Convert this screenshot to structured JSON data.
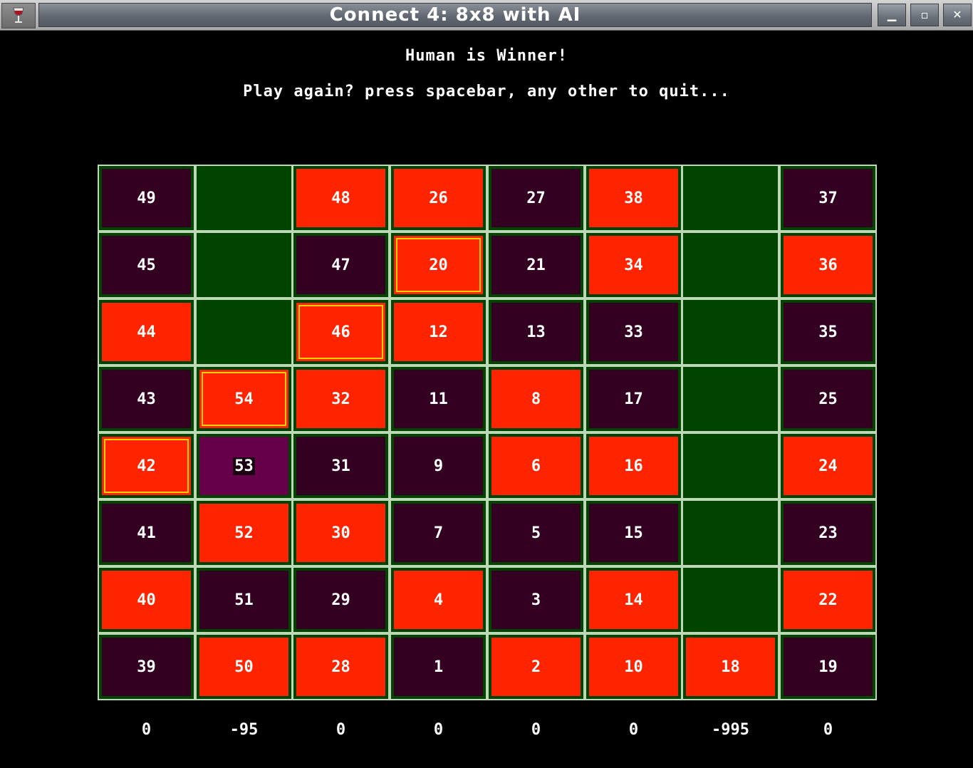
{
  "window": {
    "title": "Connect 4: 8x8 with AI",
    "app_icon": "wine-glass-icon",
    "buttons": {
      "minimize": "minimize-icon",
      "maximize": "maximize-icon",
      "close": "close-icon"
    }
  },
  "status_message": "Human is Winner!",
  "prompt_message": "Play again? press spacebar, any other to quit...",
  "colors": {
    "background": "#000000",
    "empty_cell": "#004400",
    "human_piece": "#ff2400",
    "ai_piece": "#330022",
    "last_move": "#66004a",
    "win_highlight": "#ffd000",
    "grid_line": "#bcd8b6"
  },
  "board": {
    "rows": [
      [
        {
          "num": "49",
          "player": "ai"
        },
        {
          "num": "",
          "player": "empty"
        },
        {
          "num": "48",
          "player": "human"
        },
        {
          "num": "26",
          "player": "human"
        },
        {
          "num": "27",
          "player": "ai"
        },
        {
          "num": "38",
          "player": "human"
        },
        {
          "num": "",
          "player": "empty"
        },
        {
          "num": "37",
          "player": "ai"
        }
      ],
      [
        {
          "num": "45",
          "player": "ai"
        },
        {
          "num": "",
          "player": "empty"
        },
        {
          "num": "47",
          "player": "ai"
        },
        {
          "num": "20",
          "player": "human",
          "win": true
        },
        {
          "num": "21",
          "player": "ai"
        },
        {
          "num": "34",
          "player": "human"
        },
        {
          "num": "",
          "player": "empty"
        },
        {
          "num": "36",
          "player": "human"
        }
      ],
      [
        {
          "num": "44",
          "player": "human"
        },
        {
          "num": "",
          "player": "empty"
        },
        {
          "num": "46",
          "player": "human",
          "win": true
        },
        {
          "num": "12",
          "player": "human"
        },
        {
          "num": "13",
          "player": "ai"
        },
        {
          "num": "33",
          "player": "ai"
        },
        {
          "num": "",
          "player": "empty"
        },
        {
          "num": "35",
          "player": "ai"
        }
      ],
      [
        {
          "num": "43",
          "player": "ai"
        },
        {
          "num": "54",
          "player": "human",
          "win": true
        },
        {
          "num": "32",
          "player": "human"
        },
        {
          "num": "11",
          "player": "ai"
        },
        {
          "num": "8",
          "player": "human"
        },
        {
          "num": "17",
          "player": "ai"
        },
        {
          "num": "",
          "player": "empty"
        },
        {
          "num": "25",
          "player": "ai"
        }
      ],
      [
        {
          "num": "42",
          "player": "human",
          "win": true
        },
        {
          "num": "53",
          "player": "last"
        },
        {
          "num": "31",
          "player": "ai"
        },
        {
          "num": "9",
          "player": "ai"
        },
        {
          "num": "6",
          "player": "human"
        },
        {
          "num": "16",
          "player": "human"
        },
        {
          "num": "",
          "player": "empty"
        },
        {
          "num": "24",
          "player": "human"
        }
      ],
      [
        {
          "num": "41",
          "player": "ai"
        },
        {
          "num": "52",
          "player": "human"
        },
        {
          "num": "30",
          "player": "human"
        },
        {
          "num": "7",
          "player": "ai"
        },
        {
          "num": "5",
          "player": "ai"
        },
        {
          "num": "15",
          "player": "ai"
        },
        {
          "num": "",
          "player": "empty"
        },
        {
          "num": "23",
          "player": "ai"
        }
      ],
      [
        {
          "num": "40",
          "player": "human"
        },
        {
          "num": "51",
          "player": "ai"
        },
        {
          "num": "29",
          "player": "ai"
        },
        {
          "num": "4",
          "player": "human"
        },
        {
          "num": "3",
          "player": "ai"
        },
        {
          "num": "14",
          "player": "human"
        },
        {
          "num": "",
          "player": "empty"
        },
        {
          "num": "22",
          "player": "human"
        }
      ],
      [
        {
          "num": "39",
          "player": "ai"
        },
        {
          "num": "50",
          "player": "human"
        },
        {
          "num": "28",
          "player": "human"
        },
        {
          "num": "1",
          "player": "ai"
        },
        {
          "num": "2",
          "player": "human"
        },
        {
          "num": "10",
          "player": "human"
        },
        {
          "num": "18",
          "player": "human"
        },
        {
          "num": "19",
          "player": "ai"
        }
      ]
    ]
  },
  "column_scores": [
    "0",
    "-95",
    "0",
    "0",
    "0",
    "0",
    "-995",
    "0"
  ]
}
